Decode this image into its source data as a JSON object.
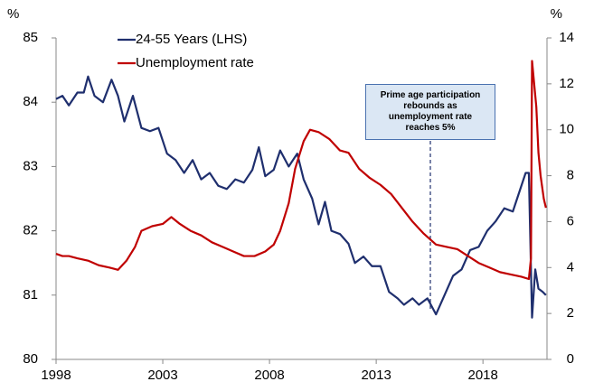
{
  "chart_data": {
    "type": "line",
    "y_unit": "%",
    "y2_unit": "%",
    "xlim": [
      1998,
      2021
    ],
    "xticks": [
      1998,
      2003,
      2008,
      2013,
      2018
    ],
    "ylim": [
      80,
      85
    ],
    "yticks": [
      80,
      81,
      82,
      83,
      84,
      85
    ],
    "y2lim": [
      0,
      14
    ],
    "y2ticks": [
      0,
      2,
      4,
      6,
      8,
      10,
      12,
      14
    ],
    "legend": "upper left",
    "annotation": "Prime age participation rebounds as unemployment rate reaches 5%",
    "series": [
      {
        "name": "24-55 Years (LHS)",
        "color": "#1f2f6e",
        "axis": "y",
        "x": [
          1998.0,
          1998.3,
          1998.6,
          1999.0,
          1999.3,
          1999.5,
          1999.8,
          2000.2,
          2000.6,
          2000.9,
          2001.2,
          2001.6,
          2002.0,
          2002.4,
          2002.8,
          2003.2,
          2003.6,
          2004.0,
          2004.4,
          2004.8,
          2005.2,
          2005.6,
          2006.0,
          2006.4,
          2006.8,
          2007.2,
          2007.5,
          2007.8,
          2008.2,
          2008.5,
          2008.9,
          2009.3,
          2009.6,
          2010.0,
          2010.3,
          2010.6,
          2010.9,
          2011.3,
          2011.7,
          2012.0,
          2012.4,
          2012.8,
          2013.2,
          2013.6,
          2014.0,
          2014.3,
          2014.7,
          2015.0,
          2015.4,
          2015.8,
          2016.2,
          2016.6,
          2017.0,
          2017.4,
          2017.8,
          2018.2,
          2018.6,
          2019.0,
          2019.4,
          2019.8,
          2020.0,
          2020.15,
          2020.3,
          2020.45,
          2020.6,
          2020.8,
          2020.95
        ],
        "values": [
          84.05,
          84.1,
          83.95,
          84.15,
          84.15,
          84.4,
          84.1,
          84.0,
          84.35,
          84.1,
          83.7,
          84.1,
          83.6,
          83.55,
          83.6,
          83.2,
          83.1,
          82.9,
          83.1,
          82.8,
          82.9,
          82.7,
          82.65,
          82.8,
          82.75,
          82.95,
          83.3,
          82.85,
          82.95,
          83.25,
          83.0,
          83.2,
          82.8,
          82.5,
          82.1,
          82.45,
          82.0,
          81.95,
          81.8,
          81.5,
          81.6,
          81.45,
          81.45,
          81.05,
          80.95,
          80.85,
          80.95,
          80.85,
          80.95,
          80.7,
          81.0,
          81.3,
          81.4,
          81.7,
          81.75,
          82.0,
          82.15,
          82.35,
          82.3,
          82.7,
          82.9,
          82.9,
          80.65,
          81.4,
          81.1,
          81.05,
          81.0
        ]
      },
      {
        "name": "Unemployment rate",
        "color": "#c00000",
        "axis": "y2",
        "x": [
          1998.0,
          1998.3,
          1998.6,
          1999.0,
          1999.5,
          2000.0,
          2000.5,
          2000.9,
          2001.3,
          2001.7,
          2002.0,
          2002.5,
          2003.0,
          2003.4,
          2003.8,
          2004.3,
          2004.8,
          2005.3,
          2005.8,
          2006.3,
          2006.8,
          2007.3,
          2007.8,
          2008.2,
          2008.5,
          2008.9,
          2009.2,
          2009.6,
          2009.9,
          2010.3,
          2010.8,
          2011.3,
          2011.7,
          2012.2,
          2012.7,
          2013.2,
          2013.7,
          2014.2,
          2014.7,
          2015.2,
          2015.8,
          2016.3,
          2016.8,
          2017.3,
          2017.8,
          2018.3,
          2018.8,
          2019.3,
          2019.8,
          2020.15,
          2020.25,
          2020.3,
          2020.5,
          2020.6,
          2020.7,
          2020.85,
          2020.95
        ],
        "values": [
          4.6,
          4.5,
          4.5,
          4.4,
          4.3,
          4.1,
          4.0,
          3.9,
          4.3,
          4.9,
          5.6,
          5.8,
          5.9,
          6.2,
          5.9,
          5.6,
          5.4,
          5.1,
          4.9,
          4.7,
          4.5,
          4.5,
          4.7,
          5.0,
          5.6,
          6.8,
          8.3,
          9.5,
          10.0,
          9.9,
          9.6,
          9.1,
          9.0,
          8.3,
          7.9,
          7.6,
          7.2,
          6.6,
          6.0,
          5.5,
          5.0,
          4.9,
          4.8,
          4.5,
          4.2,
          4.0,
          3.8,
          3.7,
          3.6,
          3.5,
          4.4,
          13.0,
          11.0,
          9.0,
          8.0,
          7.0,
          6.6
        ]
      }
    ]
  }
}
